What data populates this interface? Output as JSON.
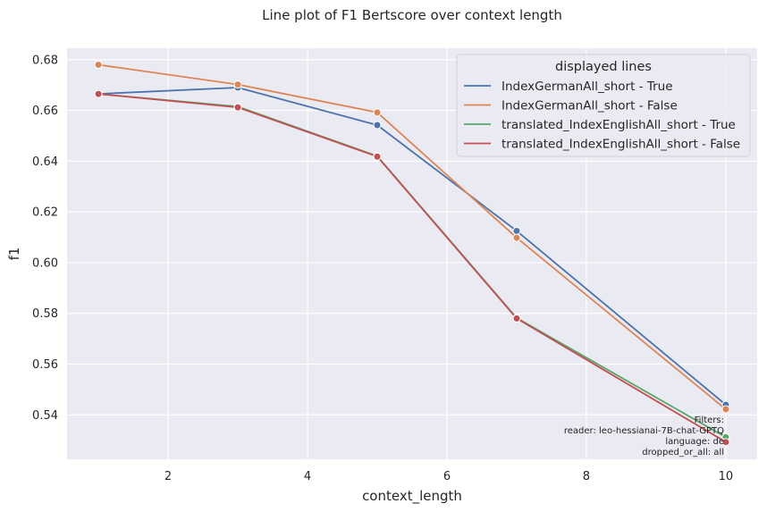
{
  "chart_data": {
    "type": "line",
    "title": "Line plot of F1 Bertscore over context length",
    "xlabel": "context_length",
    "ylabel": "f1",
    "xlim": [
      0.55,
      10.45
    ],
    "ylim": [
      0.5225,
      0.6845
    ],
    "xticks": [
      2,
      4,
      6,
      8,
      10
    ],
    "yticks": [
      0.54,
      0.56,
      0.58,
      0.6,
      0.62,
      0.64,
      0.66,
      0.68
    ],
    "ytick_labels": [
      "0.54",
      "0.56",
      "0.58",
      "0.60",
      "0.62",
      "0.64",
      "0.66",
      "0.68"
    ],
    "grid": true,
    "legend": {
      "title": "displayed lines",
      "placement": "top-right"
    },
    "series": [
      {
        "name": "IndexGermanAll_short - True",
        "color": "#4c72b0",
        "x": [
          1,
          3,
          5,
          7,
          10
        ],
        "y": [
          0.6665,
          0.669,
          0.6542,
          0.6125,
          0.544
        ]
      },
      {
        "name": "IndexGermanAll_short - False",
        "color": "#dd8452",
        "x": [
          1,
          3,
          5,
          7,
          10
        ],
        "y": [
          0.678,
          0.6702,
          0.6592,
          0.6098,
          0.5422
        ]
      },
      {
        "name": "translated_IndexEnglishAll_short - True",
        "color": "#55a868",
        "x": [
          1,
          3,
          5,
          7,
          10
        ],
        "y": [
          0.6665,
          0.6615,
          0.642,
          0.5782,
          0.5312
        ]
      },
      {
        "name": "translated_IndexEnglishAll_short - False",
        "color": "#c44e52",
        "x": [
          1,
          3,
          5,
          7,
          10
        ],
        "y": [
          0.6665,
          0.6612,
          0.6418,
          0.578,
          0.5293
        ]
      }
    ],
    "annotations": {
      "filters": [
        "Filters:",
        "reader: leo-hessianai-7B-chat-GPTQ",
        "language: de",
        "dropped_or_all: all"
      ]
    }
  }
}
